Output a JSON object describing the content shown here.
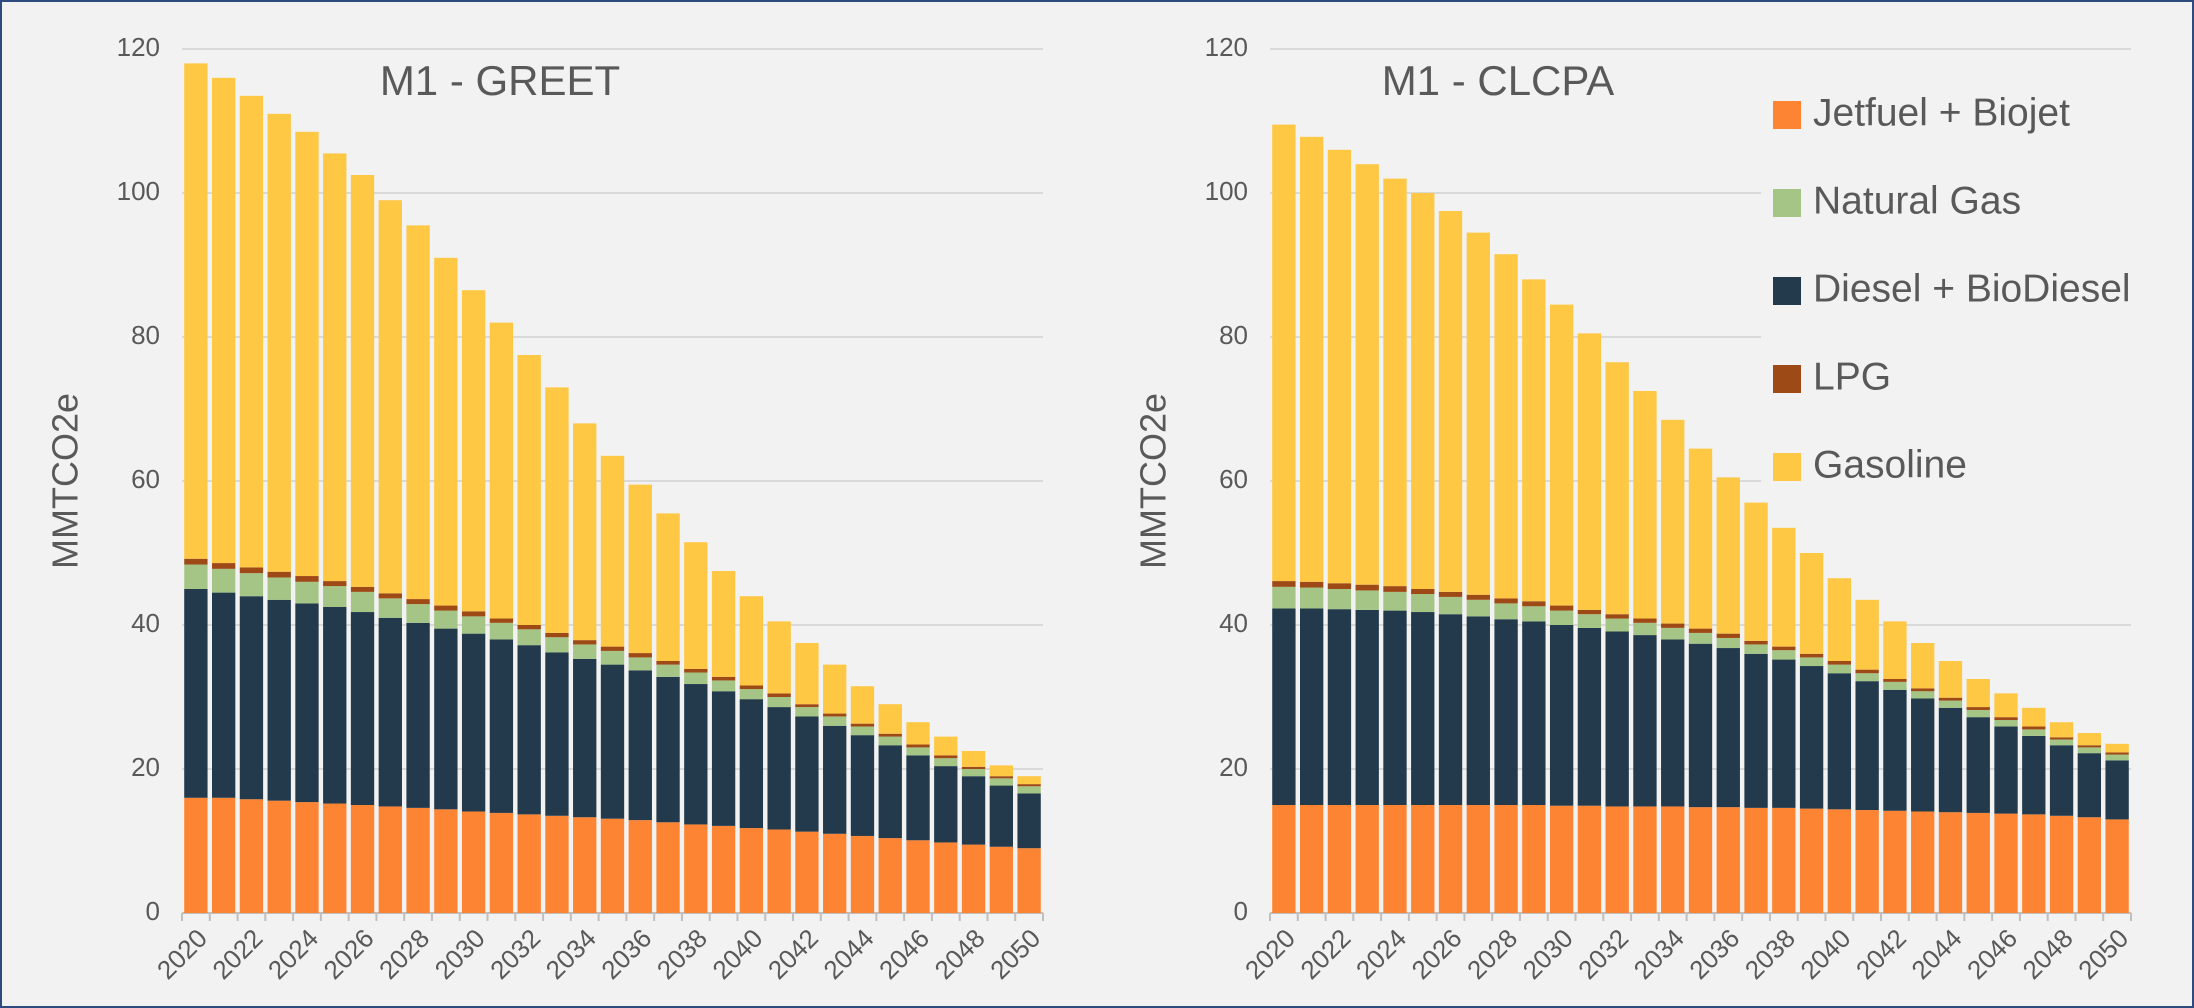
{
  "chart_data": [
    {
      "type": "bar",
      "stacked": true,
      "title": "M1 - GREET",
      "y_label": "MMTCO2e",
      "grid": true,
      "legend": false,
      "categories": [
        "2020",
        null,
        "2022",
        null,
        "2024",
        null,
        "2026",
        null,
        "2028",
        null,
        "2030",
        null,
        "2032",
        null,
        "2034",
        null,
        "2036",
        null,
        "2038",
        null,
        "2040",
        null,
        "2042",
        null,
        "2044",
        null,
        "2046",
        null,
        "2048",
        null,
        "2050"
      ],
      "ylim": [
        0,
        120
      ],
      "yticks": [
        0,
        20,
        40,
        60,
        80,
        100,
        120
      ],
      "series": [
        {
          "name": "Jetfuel + Biojet",
          "color": "#fd8432",
          "values": [
            16,
            16,
            15.8,
            15.6,
            15.4,
            15.2,
            15,
            14.8,
            14.6,
            14.4,
            14.1,
            13.9,
            13.7,
            13.5,
            13.3,
            13.1,
            12.9,
            12.6,
            12.3,
            12.1,
            11.8,
            11.6,
            11.3,
            11,
            10.7,
            10.4,
            10.1,
            9.8,
            9.5,
            9.2,
            9
          ]
        },
        {
          "name": "Diesel + BioDiesel",
          "color": "#223a4c",
          "values": [
            29,
            28.5,
            28.2,
            27.9,
            27.6,
            27.3,
            26.8,
            26.2,
            25.7,
            25.1,
            24.7,
            24.1,
            23.5,
            22.7,
            22,
            21.4,
            20.8,
            20.2,
            19.5,
            18.7,
            17.9,
            17,
            16,
            15,
            14,
            12.9,
            11.8,
            10.6,
            9.5,
            8.5,
            7.6
          ]
        },
        {
          "name": "Natural Gas",
          "color": "#a4c585",
          "values": [
            3.4,
            3.3,
            3.2,
            3.1,
            3,
            2.9,
            2.8,
            2.7,
            2.6,
            2.5,
            2.4,
            2.3,
            2.2,
            2.1,
            2,
            1.9,
            1.8,
            1.7,
            1.6,
            1.5,
            1.4,
            1.4,
            1.3,
            1.3,
            1.2,
            1.2,
            1.1,
            1.1,
            1,
            1,
            1
          ]
        },
        {
          "name": "LPG",
          "color": "#9e4a16",
          "values": [
            0.8,
            0.8,
            0.8,
            0.8,
            0.8,
            0.7,
            0.7,
            0.7,
            0.7,
            0.7,
            0.7,
            0.6,
            0.6,
            0.6,
            0.6,
            0.6,
            0.6,
            0.5,
            0.5,
            0.5,
            0.5,
            0.5,
            0.4,
            0.4,
            0.4,
            0.4,
            0.4,
            0.4,
            0.3,
            0.3,
            0.3
          ]
        },
        {
          "name": "Gasoline",
          "color": "#fec744",
          "values": [
            68.8,
            67.4,
            65.5,
            63.6,
            61.7,
            59.4,
            57.2,
            54.6,
            51.9,
            48.3,
            44.6,
            41.1,
            37.5,
            34.1,
            30.1,
            26.5,
            23.4,
            20.5,
            17.6,
            14.7,
            12.4,
            10,
            8.5,
            6.8,
            5.2,
            4.1,
            3.1,
            2.6,
            2.2,
            1.5,
            1.1
          ]
        }
      ]
    },
    {
      "type": "bar",
      "stacked": true,
      "title": "M1 - CLCPA",
      "y_label": "MMTCO2e",
      "grid": true,
      "legend": "upper right",
      "legend_order": [
        0,
        2,
        1,
        3,
        4
      ],
      "categories": [
        "2020",
        null,
        "2022",
        null,
        "2024",
        null,
        "2026",
        null,
        "2028",
        null,
        "2030",
        null,
        "2032",
        null,
        "2034",
        null,
        "2036",
        null,
        "2038",
        null,
        "2040",
        null,
        "2042",
        null,
        "2044",
        null,
        "2046",
        null,
        "2048",
        null,
        "2050"
      ],
      "ylim": [
        0,
        120
      ],
      "yticks": [
        0,
        20,
        40,
        60,
        80,
        100,
        120
      ],
      "series": [
        {
          "name": "Jetfuel + Biojet",
          "color": "#fd8432",
          "values": [
            15,
            15,
            15,
            15,
            15,
            15,
            15,
            15,
            15,
            15,
            14.9,
            14.9,
            14.8,
            14.8,
            14.8,
            14.7,
            14.7,
            14.6,
            14.6,
            14.5,
            14.4,
            14.3,
            14.2,
            14.1,
            14,
            13.9,
            13.8,
            13.7,
            13.5,
            13.3,
            13
          ]
        },
        {
          "name": "Diesel + BioDiesel",
          "color": "#223a4c",
          "values": [
            27.3,
            27.3,
            27.2,
            27.1,
            27,
            26.8,
            26.5,
            26.2,
            25.8,
            25.5,
            25.1,
            24.7,
            24.3,
            23.8,
            23.2,
            22.7,
            22.1,
            21.4,
            20.6,
            19.8,
            18.9,
            17.9,
            16.8,
            15.7,
            14.5,
            13.3,
            12.1,
            10.9,
            9.8,
            8.9,
            8.2
          ]
        },
        {
          "name": "Natural Gas",
          "color": "#a4c585",
          "values": [
            3,
            2.9,
            2.8,
            2.7,
            2.6,
            2.5,
            2.4,
            2.3,
            2.2,
            2.1,
            2,
            1.9,
            1.8,
            1.7,
            1.6,
            1.5,
            1.4,
            1.3,
            1.3,
            1.2,
            1.2,
            1.1,
            1.1,
            1,
            1,
            1,
            0.9,
            0.9,
            0.8,
            0.8,
            0.8
          ]
        },
        {
          "name": "LPG",
          "color": "#9e4a16",
          "values": [
            0.8,
            0.8,
            0.8,
            0.8,
            0.8,
            0.7,
            0.7,
            0.7,
            0.7,
            0.7,
            0.7,
            0.6,
            0.6,
            0.6,
            0.6,
            0.6,
            0.6,
            0.5,
            0.5,
            0.5,
            0.5,
            0.5,
            0.4,
            0.4,
            0.4,
            0.4,
            0.4,
            0.4,
            0.3,
            0.3,
            0.3
          ]
        },
        {
          "name": "Gasoline",
          "color": "#fec744",
          "values": [
            63.4,
            61.8,
            60.2,
            58.4,
            56.6,
            55,
            52.9,
            50.3,
            47.8,
            44.7,
            41.8,
            38.4,
            35,
            31.6,
            28.3,
            25,
            21.7,
            19.2,
            16.5,
            14,
            11.5,
            9.7,
            8,
            6.3,
            5.1,
            3.9,
            3.3,
            2.6,
            2.1,
            1.7,
            1.2
          ]
        }
      ]
    }
  ]
}
